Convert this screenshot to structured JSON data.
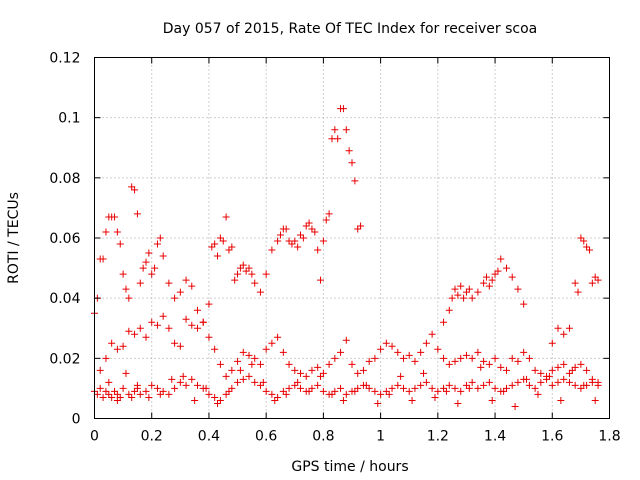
{
  "chart_data": {
    "type": "scatter",
    "title": "Day 057 of 2015, Rate Of TEC Index for receiver scoa",
    "xlabel": "GPS time / hours",
    "ylabel": "ROTI / TECUs",
    "xlim": [
      0,
      1.8
    ],
    "ylim": [
      0,
      0.12
    ],
    "xticks": [
      "0",
      "0.2",
      "0.4",
      "0.6",
      "0.8",
      "1",
      "1.2",
      "1.4",
      "1.6",
      "1.8"
    ],
    "yticks": [
      "0",
      "0.02",
      "0.04",
      "0.06",
      "0.08",
      "0.1",
      "0.12"
    ],
    "grid": true,
    "marker": "plus",
    "color": "#e80000",
    "series": [
      {
        "x": [
          0.0,
          0.01,
          0.02,
          0.03,
          0.04,
          0.05,
          0.06,
          0.07,
          0.08,
          0.09,
          0.1,
          0.12,
          0.13,
          0.14,
          0.15,
          0.16,
          0.18,
          0.2,
          0.22,
          0.24,
          0.26,
          0.28,
          0.3,
          0.32,
          0.34,
          0.36,
          0.38,
          0.4,
          0.42,
          0.44,
          0.46,
          0.48,
          0.5,
          0.52,
          0.54,
          0.56,
          0.58,
          0.6,
          0.62,
          0.64,
          0.66,
          0.68,
          0.7,
          0.72,
          0.74,
          0.76,
          0.78,
          0.8,
          0.82,
          0.84,
          0.86,
          0.88,
          0.9,
          0.92,
          0.94,
          0.96,
          0.98,
          1.0,
          1.02,
          1.04,
          1.06,
          1.08,
          1.1,
          1.12,
          1.14,
          1.16,
          1.18,
          1.2,
          1.22,
          1.24,
          1.26,
          1.28,
          1.3,
          1.32,
          1.34,
          1.36,
          1.38,
          1.4,
          1.42,
          1.44,
          1.46,
          1.48,
          1.5,
          1.52,
          1.54,
          1.56,
          1.58,
          1.6,
          1.62,
          1.64,
          1.66,
          1.68,
          1.7,
          1.72,
          1.74,
          1.76
        ],
        "y": [
          0.009,
          0.008,
          0.01,
          0.007,
          0.009,
          0.008,
          0.007,
          0.009,
          0.008,
          0.007,
          0.01,
          0.008,
          0.007,
          0.009,
          0.01,
          0.008,
          0.009,
          0.011,
          0.01,
          0.009,
          0.008,
          0.01,
          0.012,
          0.011,
          0.013,
          0.011,
          0.01,
          0.008,
          0.007,
          0.006,
          0.008,
          0.01,
          0.012,
          0.013,
          0.014,
          0.012,
          0.011,
          0.009,
          0.008,
          0.007,
          0.009,
          0.01,
          0.011,
          0.01,
          0.009,
          0.01,
          0.011,
          0.009,
          0.008,
          0.009,
          0.01,
          0.008,
          0.009,
          0.01,
          0.011,
          0.01,
          0.009,
          0.008,
          0.009,
          0.01,
          0.011,
          0.01,
          0.009,
          0.01,
          0.011,
          0.012,
          0.01,
          0.009,
          0.01,
          0.011,
          0.01,
          0.009,
          0.011,
          0.012,
          0.01,
          0.011,
          0.012,
          0.01,
          0.009,
          0.01,
          0.011,
          0.012,
          0.013,
          0.011,
          0.01,
          0.012,
          0.013,
          0.011,
          0.012,
          0.013,
          0.012,
          0.011,
          0.01,
          0.011,
          0.012,
          0.011
        ]
      },
      {
        "x": [
          0.02,
          0.04,
          0.06,
          0.08,
          0.1,
          0.12,
          0.14,
          0.16,
          0.18,
          0.2,
          0.22,
          0.24,
          0.26,
          0.28,
          0.3,
          0.32,
          0.34,
          0.36,
          0.38,
          0.4,
          0.42,
          0.44,
          0.46,
          0.48,
          0.5,
          0.52,
          0.54,
          0.56,
          0.58,
          0.6,
          0.62,
          0.64,
          0.66,
          0.68,
          0.7,
          0.72,
          0.74,
          0.76,
          0.78,
          0.8,
          0.82,
          0.84,
          0.86,
          0.88,
          0.9,
          0.92,
          0.94,
          0.96,
          0.98,
          1.0,
          1.02,
          1.04,
          1.06,
          1.08,
          1.1,
          1.12,
          1.14,
          1.16,
          1.18,
          1.2,
          1.22,
          1.24,
          1.26,
          1.28,
          1.3,
          1.32,
          1.34,
          1.36,
          1.38,
          1.4,
          1.42,
          1.44,
          1.46,
          1.48,
          1.5,
          1.52,
          1.54,
          1.56,
          1.58,
          1.6,
          1.62,
          1.64,
          1.66,
          1.68,
          1.7,
          1.72,
          1.74,
          1.76
        ],
        "y": [
          0.016,
          0.02,
          0.025,
          0.023,
          0.024,
          0.029,
          0.028,
          0.03,
          0.027,
          0.032,
          0.031,
          0.034,
          0.03,
          0.025,
          0.024,
          0.033,
          0.031,
          0.03,
          0.032,
          0.027,
          0.023,
          0.018,
          0.014,
          0.016,
          0.019,
          0.022,
          0.021,
          0.02,
          0.018,
          0.023,
          0.025,
          0.027,
          0.022,
          0.018,
          0.016,
          0.015,
          0.014,
          0.016,
          0.017,
          0.015,
          0.018,
          0.02,
          0.022,
          0.026,
          0.018,
          0.015,
          0.016,
          0.019,
          0.02,
          0.023,
          0.025,
          0.024,
          0.022,
          0.02,
          0.021,
          0.019,
          0.022,
          0.025,
          0.028,
          0.023,
          0.02,
          0.018,
          0.019,
          0.02,
          0.021,
          0.02,
          0.022,
          0.019,
          0.018,
          0.02,
          0.017,
          0.016,
          0.02,
          0.019,
          0.022,
          0.02,
          0.016,
          0.015,
          0.014,
          0.016,
          0.017,
          0.018,
          0.015,
          0.017,
          0.018,
          0.016,
          0.013,
          0.012
        ]
      },
      {
        "x": [
          0.0,
          0.01,
          0.02,
          0.03,
          0.04,
          0.05,
          0.06,
          0.07,
          0.08,
          0.09,
          0.1,
          0.11,
          0.12,
          0.13,
          0.14,
          0.15,
          0.16,
          0.17,
          0.18,
          0.19,
          0.2,
          0.21,
          0.22,
          0.23,
          0.24,
          0.26,
          0.28,
          0.3,
          0.32,
          0.34,
          0.36,
          0.38,
          0.4,
          0.41,
          0.42,
          0.43,
          0.44,
          0.45,
          0.46,
          0.47,
          0.48,
          0.49,
          0.5,
          0.51,
          0.52,
          0.53,
          0.54,
          0.55,
          0.56,
          0.58,
          0.6,
          0.62,
          0.64,
          0.65,
          0.66,
          0.67,
          0.68,
          0.69,
          0.7,
          0.71,
          0.72,
          0.73,
          0.74,
          0.75,
          0.76,
          0.77,
          0.78,
          0.79,
          0.8,
          0.81,
          0.82,
          0.83,
          0.84,
          0.85,
          0.86,
          0.87,
          0.88,
          0.89,
          0.9,
          0.91,
          0.92,
          0.93,
          1.22,
          1.24,
          1.25,
          1.26,
          1.27,
          1.28,
          1.29,
          1.3,
          1.31,
          1.32,
          1.34,
          1.36,
          1.37,
          1.38,
          1.39,
          1.4,
          1.41,
          1.42,
          1.44,
          1.46,
          1.48,
          1.5,
          1.6,
          1.62,
          1.64,
          1.66,
          1.68,
          1.69,
          1.7,
          1.71,
          1.72,
          1.73,
          1.74,
          1.75,
          1.76
        ],
        "y": [
          0.035,
          0.04,
          0.053,
          0.053,
          0.062,
          0.067,
          0.067,
          0.067,
          0.062,
          0.058,
          0.048,
          0.043,
          0.04,
          0.077,
          0.076,
          0.068,
          0.045,
          0.05,
          0.052,
          0.055,
          0.048,
          0.05,
          0.058,
          0.06,
          0.054,
          0.045,
          0.04,
          0.042,
          0.046,
          0.044,
          0.036,
          0.032,
          0.038,
          0.057,
          0.058,
          0.054,
          0.06,
          0.059,
          0.067,
          0.056,
          0.057,
          0.046,
          0.048,
          0.05,
          0.051,
          0.049,
          0.05,
          0.048,
          0.045,
          0.042,
          0.048,
          0.056,
          0.059,
          0.061,
          0.063,
          0.063,
          0.059,
          0.058,
          0.059,
          0.057,
          0.061,
          0.06,
          0.064,
          0.065,
          0.063,
          0.062,
          0.056,
          0.046,
          0.059,
          0.066,
          0.068,
          0.093,
          0.096,
          0.093,
          0.103,
          0.103,
          0.096,
          0.089,
          0.085,
          0.079,
          0.063,
          0.064,
          0.032,
          0.036,
          0.04,
          0.043,
          0.041,
          0.044,
          0.04,
          0.042,
          0.043,
          0.04,
          0.042,
          0.045,
          0.047,
          0.044,
          0.046,
          0.048,
          0.049,
          0.053,
          0.05,
          0.047,
          0.043,
          0.038,
          0.025,
          0.03,
          0.028,
          0.03,
          0.045,
          0.042,
          0.06,
          0.059,
          0.057,
          0.056,
          0.045,
          0.047,
          0.046
        ]
      },
      {
        "x": [
          0.05,
          0.08,
          0.11,
          0.15,
          0.19,
          0.23,
          0.27,
          0.31,
          0.35,
          0.39,
          0.43,
          0.47,
          0.51,
          0.55,
          0.59,
          0.63,
          0.67,
          0.71,
          0.75,
          0.79,
          0.83,
          0.87,
          0.91,
          0.95,
          0.99,
          1.03,
          1.07,
          1.11,
          1.15,
          1.19,
          1.23,
          1.27,
          1.31,
          1.35,
          1.39,
          1.43,
          1.47,
          1.51,
          1.55,
          1.59,
          1.63,
          1.67,
          1.71,
          1.75
        ],
        "y": [
          0.012,
          0.006,
          0.015,
          0.011,
          0.007,
          0.008,
          0.013,
          0.014,
          0.006,
          0.01,
          0.005,
          0.009,
          0.016,
          0.018,
          0.012,
          0.006,
          0.008,
          0.012,
          0.009,
          0.014,
          0.008,
          0.006,
          0.009,
          0.011,
          0.005,
          0.008,
          0.014,
          0.006,
          0.015,
          0.007,
          0.009,
          0.005,
          0.01,
          0.017,
          0.006,
          0.009,
          0.004,
          0.013,
          0.008,
          0.014,
          0.006,
          0.016,
          0.011,
          0.006
        ]
      }
    ]
  }
}
